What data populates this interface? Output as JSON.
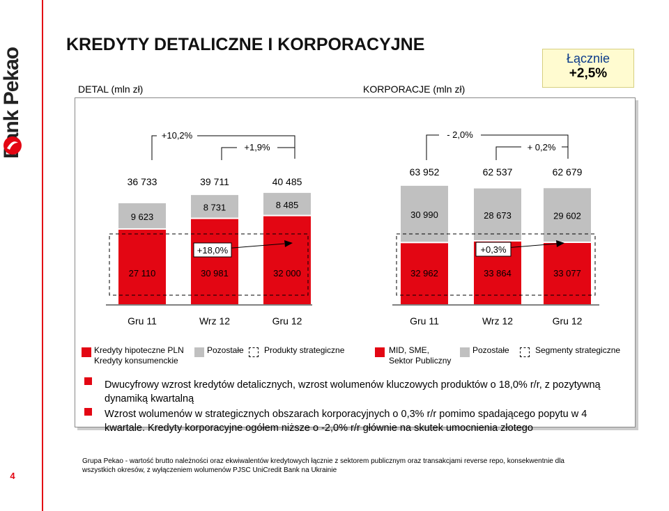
{
  "brand": {
    "name": "Bank Pekao"
  },
  "page_number": "4",
  "title": "KREDYTY DETALICZNE I KORPORACYJNE",
  "total": {
    "label": "Łącznie",
    "value": "+2,5%"
  },
  "detal": {
    "label": "DETAL (mln zł)",
    "yoy_growth": "+10,2%",
    "qoq_growth": "+1,9%",
    "inner_growth": "+18,0%",
    "legend": [
      {
        "name": "Kredyty hipoteczne PLN",
        "name2": "Kredyty konsumenckie",
        "color": "#e30613"
      },
      {
        "name": "Pozostałe",
        "color": "#c0c0c0"
      },
      {
        "name": "Produkty strategiczne",
        "color": "#ffffff"
      }
    ]
  },
  "korporacje": {
    "label": "KORPORACJE (mln zł)",
    "yoy_growth": "- 2,0%",
    "qoq_growth": "+ 0,2%",
    "inner_growth": "+0,3%",
    "legend": [
      {
        "name": "MID, SME,",
        "name2": "Sektor Publiczny",
        "color": "#e30613"
      },
      {
        "name": "Pozostałe",
        "color": "#c0c0c0"
      },
      {
        "name": "Segmenty strategiczne",
        "color": "#ffffff"
      }
    ]
  },
  "chart_data": [
    {
      "type": "bar",
      "stacked": true,
      "categories": [
        "Gru 11",
        "Wrz 12",
        "Gru 12"
      ],
      "series": [
        {
          "name": "Kredyty hipoteczne PLN Kredyty konsumenckie",
          "values": [
            27110,
            30981,
            32000
          ],
          "labels": [
            "27 110",
            "30 981",
            "32 000"
          ],
          "color": "#e30613"
        },
        {
          "name": "Pozostałe",
          "values": [
            9623,
            8731,
            8485
          ],
          "labels": [
            "9 623",
            "8 731",
            "8 485"
          ],
          "color": "#c0c0c0"
        }
      ],
      "totals": [
        36733,
        39711,
        40485
      ],
      "total_labels": [
        "36 733",
        "39 711",
        "40 485"
      ]
    },
    {
      "type": "bar",
      "stacked": true,
      "categories": [
        "Gru 11",
        "Wrz 12",
        "Gru 12"
      ],
      "series": [
        {
          "name": "MID, SME, Sektor Publiczny",
          "values": [
            32962,
            33864,
            33077
          ],
          "labels": [
            "32 962",
            "33 864",
            "33 077"
          ],
          "color": "#e30613"
        },
        {
          "name": "Pozostałe",
          "values": [
            30990,
            28673,
            29602
          ],
          "labels": [
            "30 990",
            "28 673",
            "29 602"
          ],
          "color": "#c0c0c0"
        }
      ],
      "totals": [
        63952,
        62537,
        62679
      ],
      "total_labels": [
        "63 952",
        "62 537",
        "62 679"
      ]
    }
  ],
  "bullets": [
    "Dwucyfrowy wzrost kredytów detalicznych, wzrost wolumenów kluczowych produktów o 18,0% r/r, z pozytywną dynamiką kwartalną",
    "Wzrost wolumenów w strategicznych obszarach korporacyjnych o 0,3% r/r pomimo spadającego popytu w 4 kwartale. Kredyty korporacyjne ogółem niższe o -2,0% r/r głównie na skutek umocnienia złotego"
  ],
  "footnote": "Grupa Pekao - wartość brutto należności oraz ekwiwalentów kredytowych łącznie z sektorem  publicznym  oraz transakcjami reverse repo, konsekwentnie dla wszystkich okresów, z wyłączeniem wolumenów PJSC UniCredit Bank na Ukrainie"
}
